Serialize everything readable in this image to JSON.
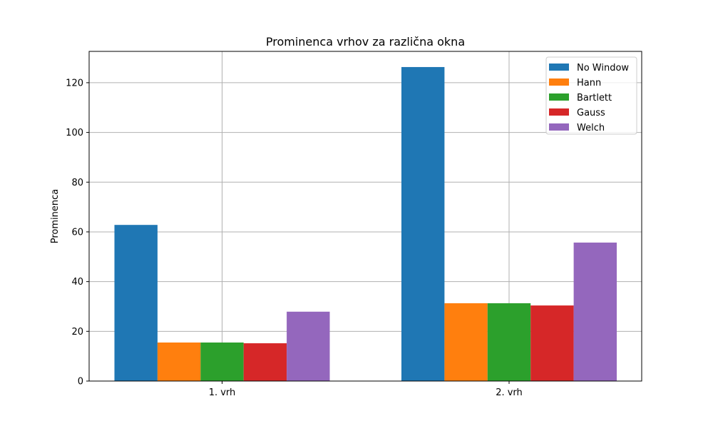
{
  "chart_data": {
    "type": "bar",
    "title": "Prominenca vrhov za različna okna",
    "xlabel": "",
    "ylabel": "Prominenca",
    "categories": [
      "1. vrh",
      "2. vrh"
    ],
    "series": [
      {
        "name": "No Window",
        "values": [
          62.8,
          126.3
        ],
        "color": "#1f77b4"
      },
      {
        "name": "Hann",
        "values": [
          15.5,
          31.3
        ],
        "color": "#ff7f0e"
      },
      {
        "name": "Bartlett",
        "values": [
          15.5,
          31.3
        ],
        "color": "#2ca02c"
      },
      {
        "name": "Gauss",
        "values": [
          15.2,
          30.4
        ],
        "color": "#d62728"
      },
      {
        "name": "Welch",
        "values": [
          27.9,
          55.7
        ],
        "color": "#9467bd"
      }
    ],
    "ylim": [
      0,
      132.6
    ],
    "yticks": [
      0,
      20,
      40,
      60,
      80,
      100,
      120
    ],
    "grid": true,
    "legend": "top-right"
  }
}
